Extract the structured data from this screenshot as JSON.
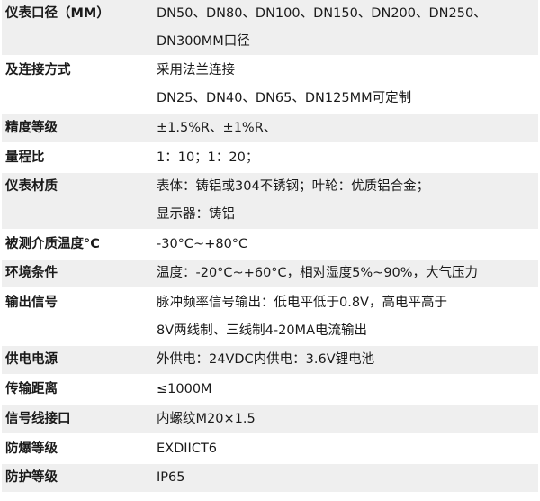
{
  "specs": [
    {
      "label": "仪表口径（MM）",
      "lines": [
        "DN50、DN80、DN100、DN150、DN200、DN250、",
        "DN300MM口径"
      ]
    },
    {
      "label": "及连接方式",
      "lines": [
        "采用法兰连接",
        "DN25、DN40、DN65、DN125MM可定制"
      ]
    },
    {
      "label": "精度等级",
      "lines": [
        "±1.5%R、±1%R、"
      ]
    },
    {
      "label": "量程比",
      "lines": [
        "1：10；1：20；"
      ]
    },
    {
      "label": "仪表材质",
      "lines": [
        "表体：铸铝或304不锈钢；叶轮：优质铝合金；",
        "显示器：铸铝"
      ]
    },
    {
      "label": "被测介质温度°C",
      "lines": [
        "-30°C~+80°C"
      ]
    },
    {
      "label": "环境条件",
      "lines": [
        "温度：-20°C~+60°C，相对湿度5%~90%，大气压力"
      ]
    },
    {
      "label": "输出信号",
      "lines": [
        "脉冲频率信号输出：低电平低于0.8V，高电平高于",
        "8V两线制、三线制4-20MA电流输出"
      ]
    },
    {
      "label": "供电电源",
      "lines": [
        "外供电：24VDC内供电：3.6V锂电池"
      ]
    },
    {
      "label": "传输距离",
      "lines": [
        "≤1000M"
      ]
    },
    {
      "label": "信号线接口",
      "lines": [
        "内螺纹M20×1.5"
      ]
    },
    {
      "label": "防爆等级",
      "lines": [
        "EXDIICT6"
      ]
    },
    {
      "label": "防护等级",
      "lines": [
        "IP65"
      ]
    }
  ],
  "colors": {
    "row_alt": "#efefef",
    "row": "#ffffff",
    "text": "#1a1a1a"
  }
}
